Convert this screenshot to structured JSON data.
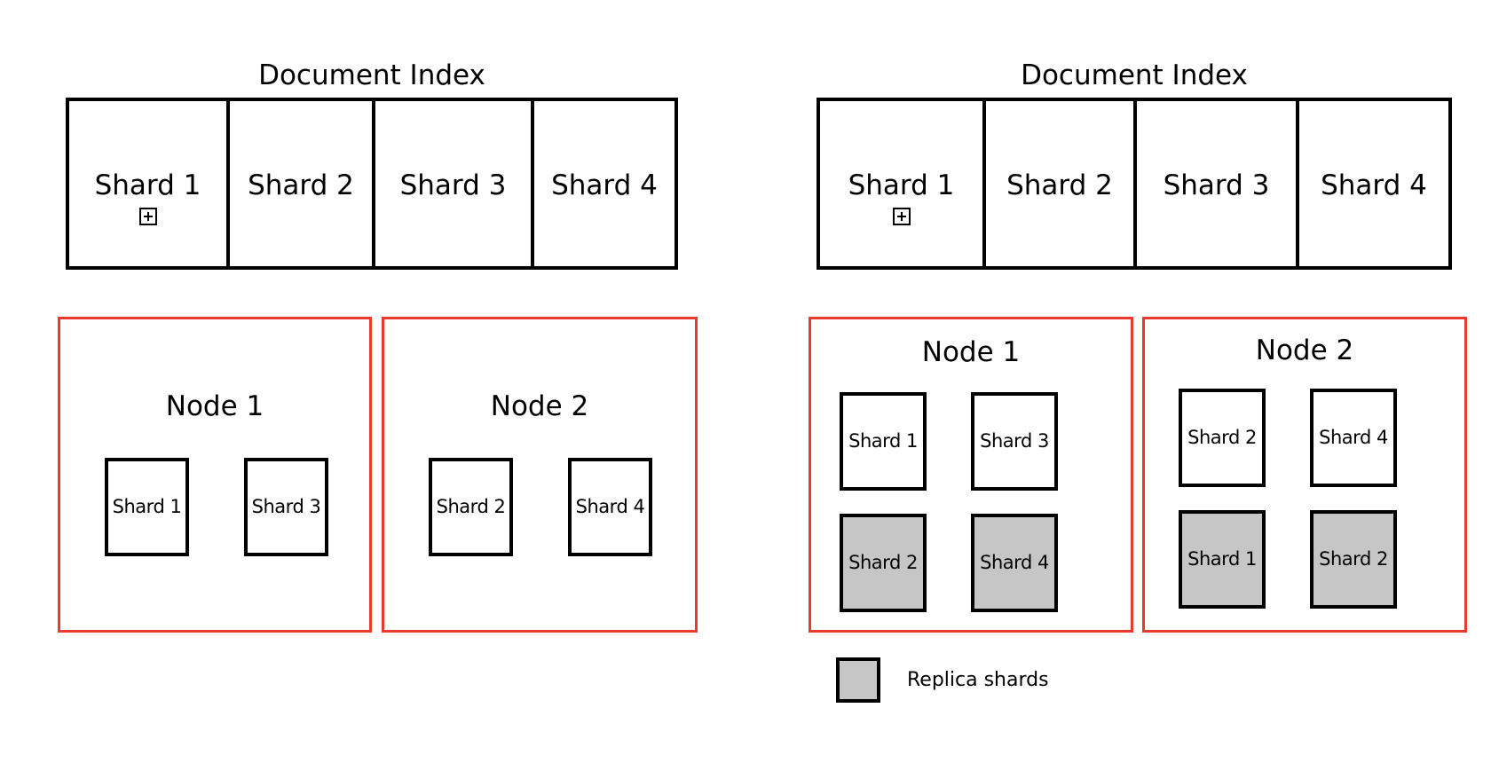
{
  "left_panel": {
    "index_title": "Document Index",
    "index_shards": [
      {
        "label": "Shard 1",
        "expand_icon": "plus-box-icon"
      },
      {
        "label": "Shard 2"
      },
      {
        "label": "Shard 3"
      },
      {
        "label": "Shard 4"
      }
    ],
    "nodes": [
      {
        "title": "Node 1",
        "shards": [
          {
            "label": "Shard 1",
            "replica": false
          },
          {
            "label": "Shard 3",
            "replica": false
          }
        ]
      },
      {
        "title": "Node 2",
        "shards": [
          {
            "label": "Shard 2",
            "replica": false
          },
          {
            "label": "Shard 4",
            "replica": false
          }
        ]
      }
    ]
  },
  "right_panel": {
    "index_title": "Document Index",
    "index_shards": [
      {
        "label": "Shard 1",
        "expand_icon": "plus-box-icon"
      },
      {
        "label": "Shard 2"
      },
      {
        "label": "Shard 3"
      },
      {
        "label": "Shard 4"
      }
    ],
    "nodes": [
      {
        "title": "Node 1",
        "shards": [
          {
            "label": "Shard 1",
            "replica": false
          },
          {
            "label": "Shard 3",
            "replica": false
          },
          {
            "label": "Shard 2",
            "replica": true
          },
          {
            "label": "Shard 4",
            "replica": true
          }
        ]
      },
      {
        "title": "Node 2",
        "shards": [
          {
            "label": "Shard 2",
            "replica": false
          },
          {
            "label": "Shard 4",
            "replica": false
          },
          {
            "label": "Shard 1",
            "replica": true
          },
          {
            "label": "Shard 2",
            "replica": true
          }
        ]
      }
    ]
  },
  "legend": {
    "label": "Replica shards"
  },
  "colors": {
    "node_border": "#ea3a2f",
    "replica_fill": "#c6c6c6",
    "outline": "#000000"
  }
}
